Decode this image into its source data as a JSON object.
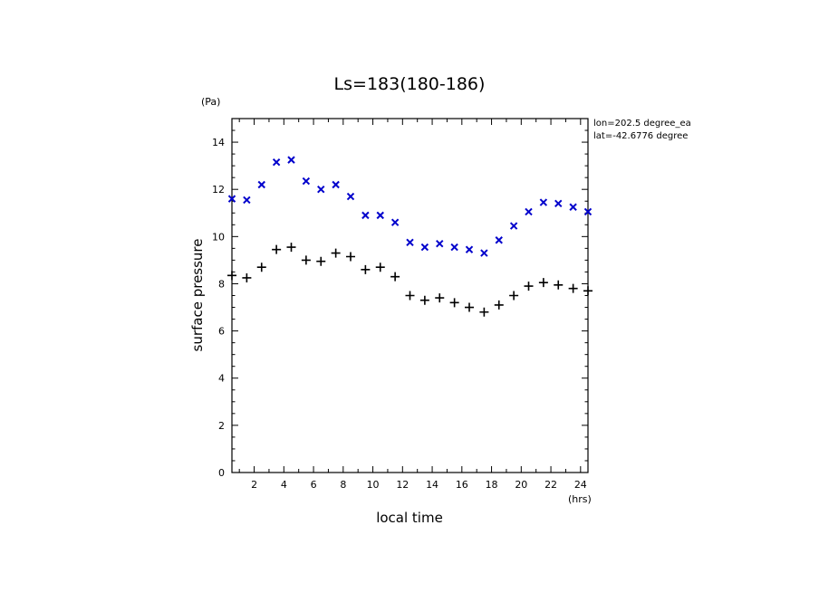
{
  "chart_data": {
    "type": "scatter",
    "title": "Ls=183(180-186)",
    "xlabel": "local time",
    "ylabel": "surface pressure",
    "xunit": "(hrs)",
    "yunit": "(Pa)",
    "xlim": [
      0.5,
      24.5
    ],
    "ylim": [
      0,
      15
    ],
    "xticks": [
      2,
      4,
      6,
      8,
      10,
      12,
      14,
      16,
      18,
      20,
      22,
      24
    ],
    "yticks": [
      0,
      2,
      4,
      6,
      8,
      10,
      12,
      14
    ],
    "annotations": [
      "lon=202.5 degree_ea",
      "lat=-42.6776 degree"
    ],
    "x": [
      0.5,
      1.5,
      2.5,
      3.5,
      4.5,
      5.5,
      6.5,
      7.5,
      8.5,
      9.5,
      10.5,
      11.5,
      12.5,
      13.5,
      14.5,
      15.5,
      16.5,
      17.5,
      18.5,
      19.5,
      20.5,
      21.5,
      22.5,
      23.5,
      24.5
    ],
    "series": [
      {
        "marker": "x",
        "color": "#0000cc",
        "values": [
          11.6,
          11.55,
          12.2,
          13.15,
          13.25,
          12.35,
          12.0,
          12.2,
          11.7,
          10.9,
          10.9,
          10.6,
          9.75,
          9.55,
          9.7,
          9.55,
          9.45,
          9.3,
          9.85,
          10.45,
          11.05,
          11.45,
          11.4,
          11.25,
          11.05
        ]
      },
      {
        "marker": "+",
        "color": "#000000",
        "values": [
          8.35,
          8.25,
          8.7,
          9.45,
          9.55,
          9.0,
          8.95,
          9.3,
          9.15,
          8.6,
          8.7,
          8.3,
          7.5,
          7.3,
          7.4,
          7.2,
          7.0,
          6.8,
          7.1,
          7.5,
          7.9,
          8.05,
          7.95,
          7.8,
          7.7
        ]
      }
    ]
  }
}
